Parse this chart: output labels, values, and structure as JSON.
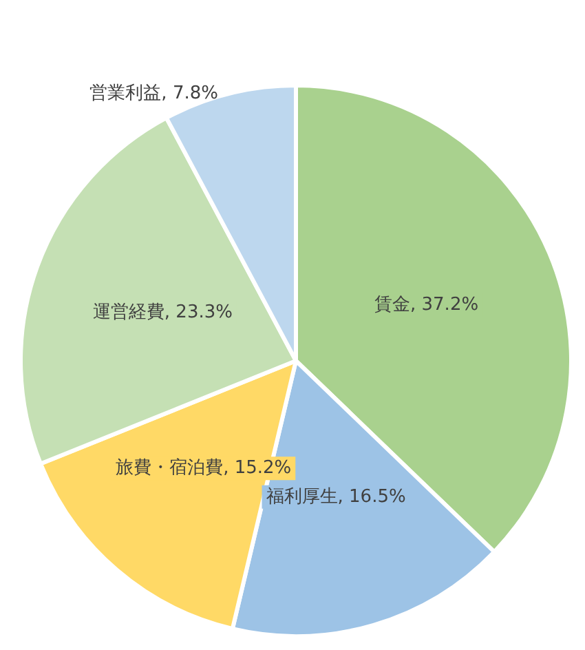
{
  "chart_data": {
    "type": "pie",
    "categories": [
      "賃金",
      "福利厚生",
      "旅費・宿泊費",
      "運営経費",
      "営業利益"
    ],
    "values": [
      37.2,
      16.5,
      15.2,
      23.3,
      7.8
    ],
    "colors": [
      "#a9d18e",
      "#9dc3e6",
      "#ffd966",
      "#c5e0b4",
      "#bdd7ee"
    ],
    "value_labels": [
      "37.2%",
      "16.5%",
      "15.2%",
      "23.3%",
      "7.8%"
    ],
    "legend": false
  }
}
